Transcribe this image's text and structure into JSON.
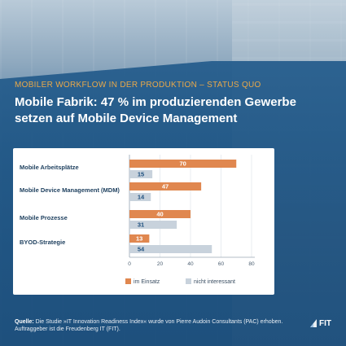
{
  "header": {
    "kicker": "MOBILER WORKFLOW IN DER PRODUKTION – STATUS QUO",
    "title": "Mobile Fabrik: 47 % im produzierenden Gewerbe setzen auf Mobile Device Management"
  },
  "colors": {
    "accent": "#e9a94a",
    "im_einsatz": "#e0874f",
    "nicht_interessant": "#c8d2dc",
    "panel": "#245c8c"
  },
  "chart_data": {
    "type": "bar",
    "orientation": "horizontal",
    "categories": [
      "Mobile Arbeitsplätze",
      "Mobile Device Management (MDM)",
      "Mobile Prozesse",
      "BYOD-Strategie"
    ],
    "series": [
      {
        "name": "im Einsatz",
        "values": [
          70,
          47,
          40,
          13
        ]
      },
      {
        "name": "nicht interessant",
        "values": [
          15,
          14,
          31,
          54
        ]
      }
    ],
    "xticks": [
      0,
      20,
      40,
      60,
      80
    ],
    "xlim": [
      0,
      80
    ],
    "legend_position": "bottom"
  },
  "footer": {
    "source_label": "Quelle:",
    "source_text": " Die Studie »IT Innovation Readiness Index« wurde von Pierre Audoin Consultants (PAC) erhoben. Auftraggeber ist die Freudenberg IT (FIT)."
  },
  "logo": {
    "text": "FIT",
    "icon": "fit-logo-icon"
  }
}
